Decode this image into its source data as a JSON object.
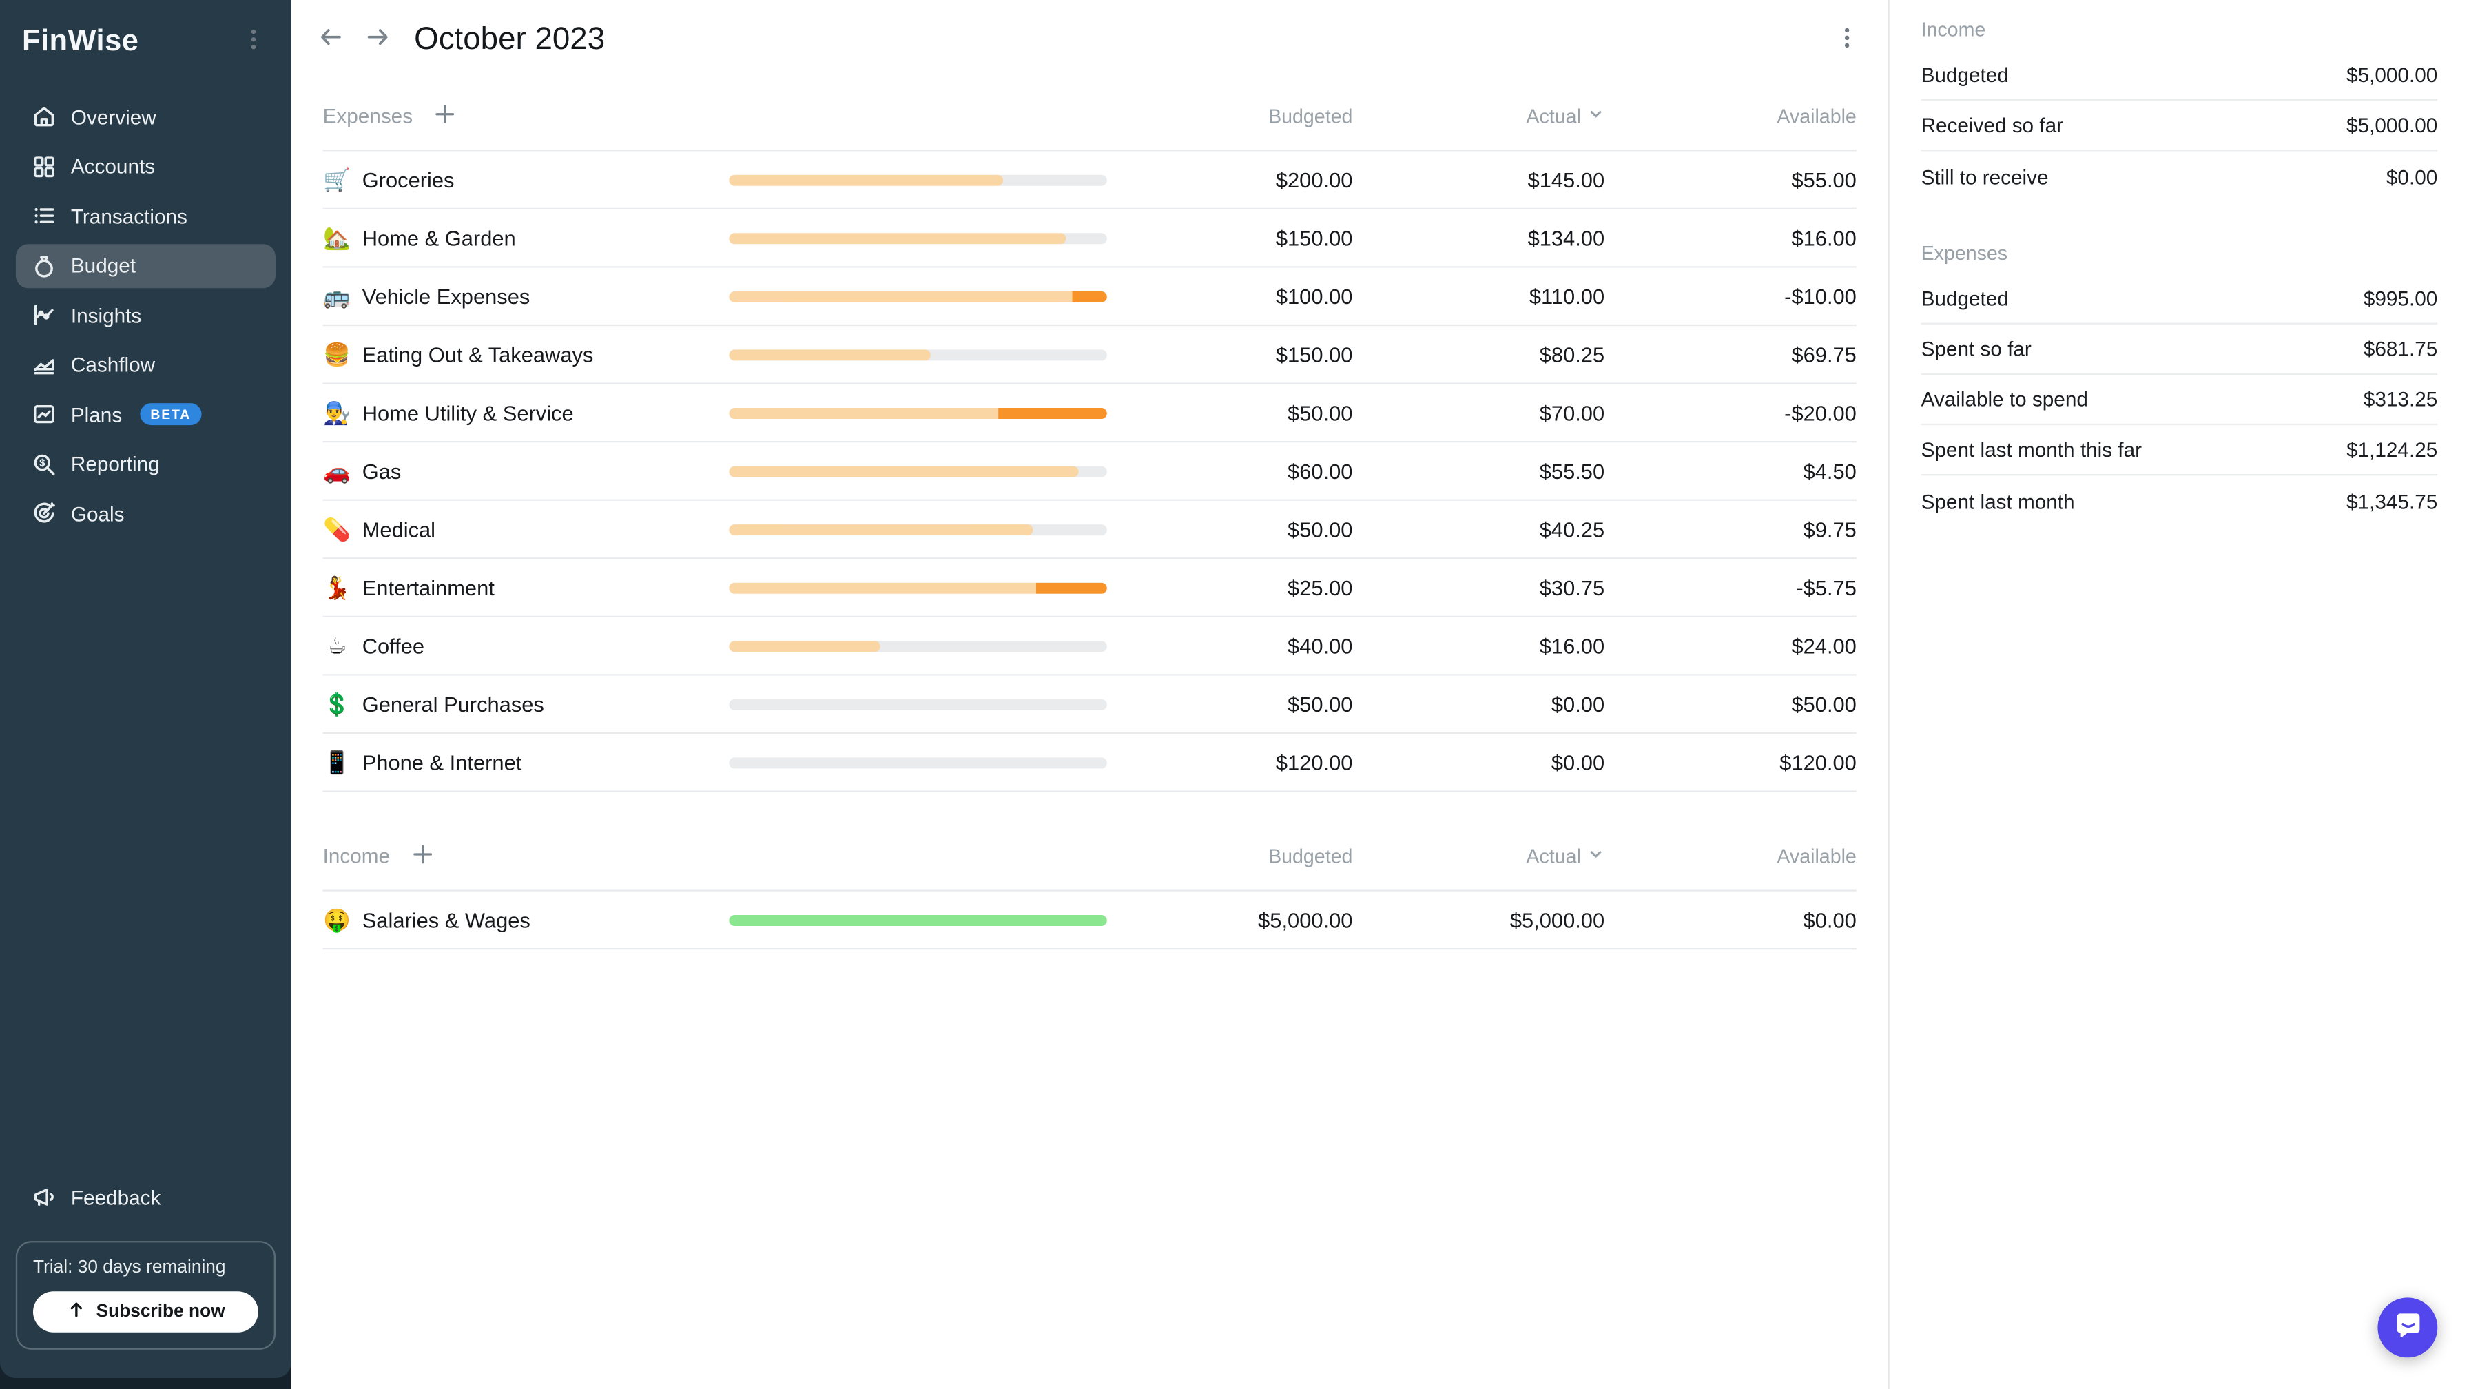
{
  "app_title": "FinWise",
  "colors": {
    "sidebar_bg": "#273A47",
    "sidebar_outer": "#15222B",
    "sidebar_active": "#4D5C67",
    "beta_badge": "#2E86DE",
    "bar_track": "#E9EBED",
    "bar_fill": "#FAD6A4",
    "bar_over": "#F8932A",
    "bar_income": "#8BE78F",
    "chat_bubble": "#5246EC",
    "divider": "#E8EAED",
    "muted_text": "#99A1A8",
    "text": "#17191C"
  },
  "sidebar": {
    "items": [
      {
        "label": "Overview",
        "icon": "home-icon",
        "active": false
      },
      {
        "label": "Accounts",
        "icon": "grid-icon",
        "active": false
      },
      {
        "label": "Transactions",
        "icon": "list-icon",
        "active": false
      },
      {
        "label": "Budget",
        "icon": "money-bag-icon",
        "active": true
      },
      {
        "label": "Insights",
        "icon": "chart-line-icon",
        "active": false
      },
      {
        "label": "Cashflow",
        "icon": "area-chart-icon",
        "active": false
      },
      {
        "label": "Plans",
        "icon": "plans-chart-icon",
        "active": false,
        "badge": "BETA"
      },
      {
        "label": "Reporting",
        "icon": "search-dollar-icon",
        "active": false
      },
      {
        "label": "Goals",
        "icon": "target-icon",
        "active": false
      }
    ],
    "feedback": {
      "label": "Feedback",
      "icon": "megaphone-icon"
    },
    "trial": {
      "text": "Trial: 30 days remaining",
      "button_label": "Subscribe now"
    }
  },
  "header": {
    "title": "October 2023"
  },
  "table": {
    "columns": {
      "budgeted": "Budgeted",
      "actual": "Actual",
      "available": "Available"
    },
    "sections": [
      {
        "id": "expenses",
        "label": "Expenses",
        "kind": "expense",
        "rows": [
          {
            "emoji": "🛒",
            "name": "Groceries",
            "budgeted": "$200.00",
            "actual": "$145.00",
            "available": "$55.00",
            "budgeted_num": 200,
            "actual_num": 145
          },
          {
            "emoji": "🏡",
            "name": "Home & Garden",
            "budgeted": "$150.00",
            "actual": "$134.00",
            "available": "$16.00",
            "budgeted_num": 150,
            "actual_num": 134
          },
          {
            "emoji": "🚌",
            "name": "Vehicle Expenses",
            "budgeted": "$100.00",
            "actual": "$110.00",
            "available": "-$10.00",
            "budgeted_num": 100,
            "actual_num": 110
          },
          {
            "emoji": "🍔",
            "name": "Eating Out & Takeaways",
            "budgeted": "$150.00",
            "actual": "$80.25",
            "available": "$69.75",
            "budgeted_num": 150,
            "actual_num": 80.25
          },
          {
            "emoji": "👨‍🔧",
            "name": "Home Utility & Service",
            "budgeted": "$50.00",
            "actual": "$70.00",
            "available": "-$20.00",
            "budgeted_num": 50,
            "actual_num": 70
          },
          {
            "emoji": "🚗",
            "name": "Gas",
            "budgeted": "$60.00",
            "actual": "$55.50",
            "available": "$4.50",
            "budgeted_num": 60,
            "actual_num": 55.5
          },
          {
            "emoji": "💊",
            "name": "Medical",
            "budgeted": "$50.00",
            "actual": "$40.25",
            "available": "$9.75",
            "budgeted_num": 50,
            "actual_num": 40.25
          },
          {
            "emoji": "💃",
            "name": "Entertainment",
            "budgeted": "$25.00",
            "actual": "$30.75",
            "available": "-$5.75",
            "budgeted_num": 25,
            "actual_num": 30.75
          },
          {
            "emoji": "☕",
            "name": "Coffee",
            "budgeted": "$40.00",
            "actual": "$16.00",
            "available": "$24.00",
            "budgeted_num": 40,
            "actual_num": 16
          },
          {
            "emoji": "💲",
            "name": "General Purchases",
            "budgeted": "$50.00",
            "actual": "$0.00",
            "available": "$50.00",
            "budgeted_num": 50,
            "actual_num": 0
          },
          {
            "emoji": "📱",
            "name": "Phone & Internet",
            "budgeted": "$120.00",
            "actual": "$0.00",
            "available": "$120.00",
            "budgeted_num": 120,
            "actual_num": 0
          }
        ]
      },
      {
        "id": "income",
        "label": "Income",
        "kind": "income",
        "rows": [
          {
            "emoji": "🤑",
            "name": "Salaries & Wages",
            "budgeted": "$5,000.00",
            "actual": "$5,000.00",
            "available": "$0.00",
            "budgeted_num": 5000,
            "actual_num": 5000
          }
        ]
      }
    ]
  },
  "summary": {
    "sections": [
      {
        "label": "Income",
        "rows": [
          {
            "label": "Budgeted",
            "value": "$5,000.00"
          },
          {
            "label": "Received so far",
            "value": "$5,000.00"
          },
          {
            "label": "Still to receive",
            "value": "$0.00"
          }
        ]
      },
      {
        "label": "Expenses",
        "rows": [
          {
            "label": "Budgeted",
            "value": "$995.00"
          },
          {
            "label": "Spent so far",
            "value": "$681.75"
          },
          {
            "label": "Available to spend",
            "value": "$313.25"
          },
          {
            "label": "Spent last month this far",
            "value": "$1,124.25"
          },
          {
            "label": "Spent last month",
            "value": "$1,345.75"
          }
        ]
      }
    ]
  }
}
